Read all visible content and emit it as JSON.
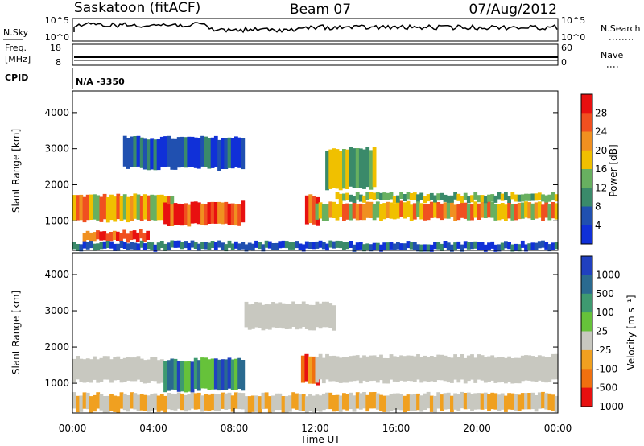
{
  "header": {
    "station": "Saskatoon (fitACF)",
    "beam": "Beam 07",
    "date": "07/Aug/2012"
  },
  "panels": {
    "nsky": {
      "label": "N.Sky",
      "right_label": "N.Search",
      "tick_top": "10^5",
      "tick_bottom": "10^0",
      "right_tick_top": "10^5",
      "right_tick_bottom": "10^0"
    },
    "freq": {
      "label_line1": "Freq.",
      "label_line2": "[MHz]",
      "right_label": "Nave",
      "tick_top": "18",
      "tick_bottom": "8",
      "right_tick_top": "60",
      "right_tick_bottom": "0"
    },
    "cpid": {
      "label": "CPID",
      "value": "N/A -3350"
    }
  },
  "chart_data": [
    {
      "type": "heatmap",
      "name": "power",
      "ylabel": "Slant Range [km]",
      "xlabel": "Time UT",
      "x_ticks": [
        "00:00",
        "04:00",
        "08:00",
        "12:00",
        "16:00",
        "20:00",
        "00:00"
      ],
      "y_ticks": [
        1000,
        2000,
        3000,
        4000
      ],
      "ylim": [
        180,
        4600
      ],
      "xlim_hours": [
        0,
        24
      ],
      "colorbar": {
        "label": "Power [dB]",
        "ticks": [
          4,
          8,
          12,
          16,
          20,
          24,
          28
        ],
        "colors": [
          "#1030d8",
          "#2050b0",
          "#3a8a6a",
          "#68b060",
          "#f0c000",
          "#f09020",
          "#f05020",
          "#e81010"
        ]
      },
      "bands": [
        {
          "t0": 0.0,
          "t1": 5.0,
          "r0": 1000,
          "r1": 1700,
          "level": "high"
        },
        {
          "t0": 0.5,
          "t1": 3.8,
          "r0": 450,
          "r1": 700,
          "level": "max"
        },
        {
          "t0": 4.5,
          "t1": 8.5,
          "r0": 900,
          "r1": 1500,
          "level": "max"
        },
        {
          "t0": 11.5,
          "t1": 12.2,
          "r0": 900,
          "r1": 1700,
          "level": "max"
        },
        {
          "t0": 12.0,
          "t1": 24.0,
          "r0": 1050,
          "r1": 1500,
          "level": "high"
        },
        {
          "t0": 13.0,
          "t1": 24.0,
          "r0": 1550,
          "r1": 1750,
          "level": "medium"
        },
        {
          "t0": 2.5,
          "t1": 8.5,
          "r0": 2450,
          "r1": 3300,
          "level": "low"
        },
        {
          "t0": 12.5,
          "t1": 15.0,
          "r0": 1900,
          "r1": 3000,
          "level": "medium"
        },
        {
          "t0": 0.0,
          "t1": 24.0,
          "r0": 200,
          "r1": 400,
          "level": "low"
        }
      ]
    },
    {
      "type": "heatmap",
      "name": "velocity",
      "ylabel": "Slant Range [km]",
      "xlabel": "Time UT",
      "x_ticks": [
        "00:00",
        "04:00",
        "08:00",
        "12:00",
        "16:00",
        "20:00",
        "00:00"
      ],
      "y_ticks": [
        1000,
        2000,
        3000,
        4000
      ],
      "ylim": [
        180,
        4600
      ],
      "xlim_hours": [
        0,
        24
      ],
      "colorbar": {
        "label": "Velocity [m s⁻¹]",
        "ticks": [
          "1000",
          "500",
          "100",
          "25",
          "-25",
          "-100",
          "-500",
          "-1000"
        ],
        "colors": [
          "#2040c0",
          "#2a6a90",
          "#3e9a70",
          "#66c23a",
          "#c8c8c0",
          "#f0a020",
          "#f07010",
          "#e81010"
        ]
      },
      "bands": [
        {
          "t0": 0.0,
          "t1": 4.5,
          "r0": 1050,
          "r1": 1700,
          "level": "neutral"
        },
        {
          "t0": 4.5,
          "t1": 8.5,
          "r0": 800,
          "r1": 1650,
          "level": "toward"
        },
        {
          "t0": 11.3,
          "t1": 12.2,
          "r0": 1000,
          "r1": 1750,
          "level": "away"
        },
        {
          "t0": 12.0,
          "t1": 24.0,
          "r0": 1050,
          "r1": 1750,
          "level": "neutral"
        },
        {
          "t0": 8.5,
          "t1": 13.0,
          "r0": 2500,
          "r1": 3200,
          "level": "neutral"
        },
        {
          "t0": 0.0,
          "t1": 24.0,
          "r0": 250,
          "r1": 700,
          "level": "away_weak"
        }
      ]
    }
  ]
}
